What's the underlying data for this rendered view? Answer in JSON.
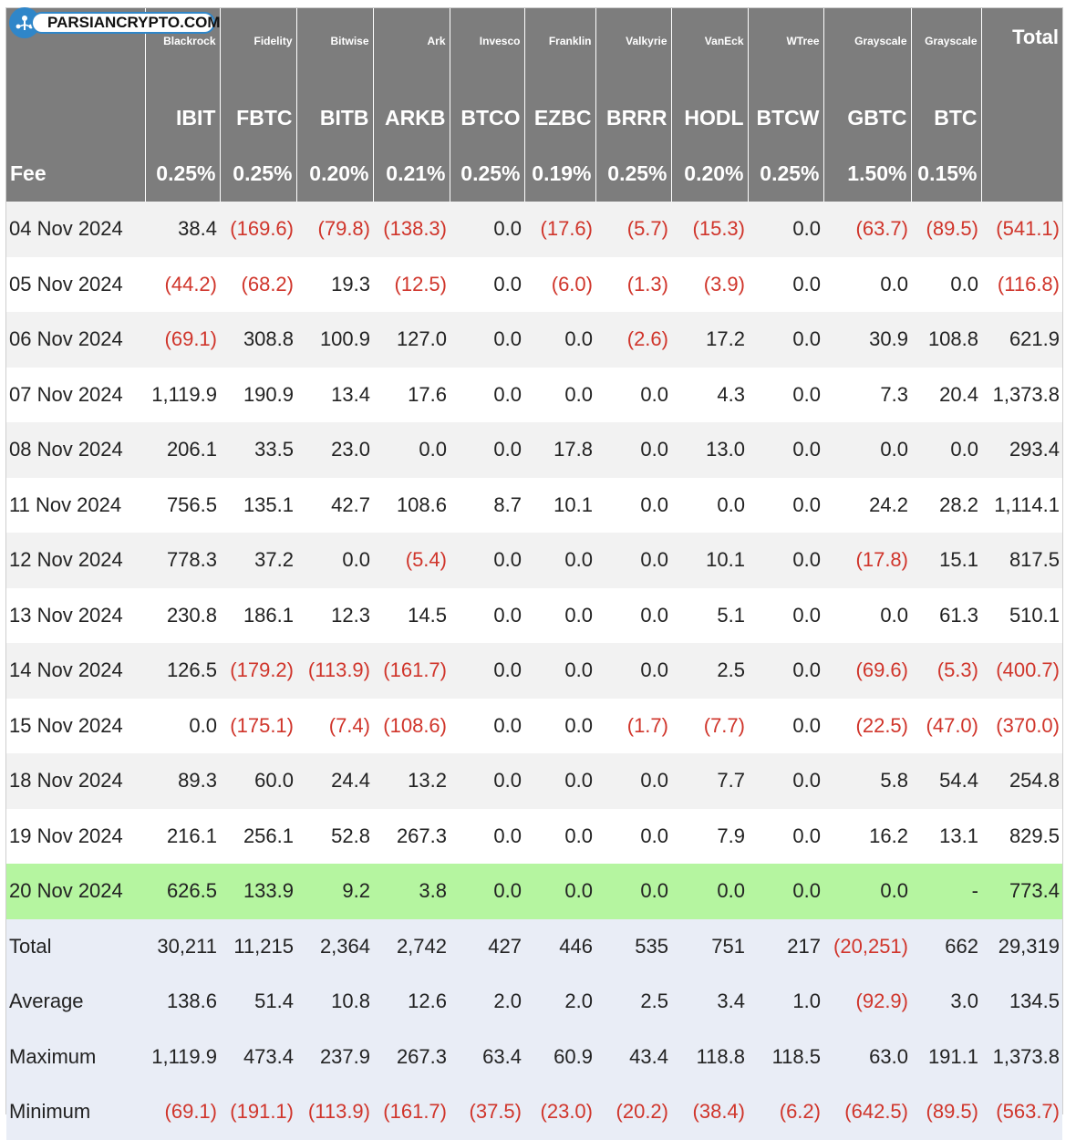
{
  "watermark": {
    "text": "PARSIANCRYPTO.COM"
  },
  "header": {
    "issuers": [
      "Blackrock",
      "Fidelity",
      "Bitwise",
      "Ark",
      "Invesco",
      "Franklin",
      "Valkyrie",
      "VanEck",
      "WTree",
      "Grayscale",
      "Grayscale"
    ],
    "total_label": "Total",
    "tickers": [
      "IBIT",
      "FBTC",
      "BITB",
      "ARKB",
      "BTCO",
      "EZBC",
      "BRRR",
      "HODL",
      "BTCW",
      "GBTC",
      "BTC"
    ],
    "fee_label": "Fee",
    "fees": [
      "0.25%",
      "0.25%",
      "0.20%",
      "0.21%",
      "0.25%",
      "0.19%",
      "0.25%",
      "0.20%",
      "0.25%",
      "1.50%",
      "0.15%"
    ]
  },
  "rows": [
    {
      "date": "04 Nov 2024",
      "values": [
        "38.4",
        "(169.6)",
        "(79.8)",
        "(138.3)",
        "0.0",
        "(17.6)",
        "(5.7)",
        "(15.3)",
        "0.0",
        "(63.7)",
        "(89.5)",
        "(541.1)"
      ]
    },
    {
      "date": "05 Nov 2024",
      "values": [
        "(44.2)",
        "(68.2)",
        "19.3",
        "(12.5)",
        "0.0",
        "(6.0)",
        "(1.3)",
        "(3.9)",
        "0.0",
        "0.0",
        "0.0",
        "(116.8)"
      ]
    },
    {
      "date": "06 Nov 2024",
      "values": [
        "(69.1)",
        "308.8",
        "100.9",
        "127.0",
        "0.0",
        "0.0",
        "(2.6)",
        "17.2",
        "0.0",
        "30.9",
        "108.8",
        "621.9"
      ]
    },
    {
      "date": "07 Nov 2024",
      "values": [
        "1,119.9",
        "190.9",
        "13.4",
        "17.6",
        "0.0",
        "0.0",
        "0.0",
        "4.3",
        "0.0",
        "7.3",
        "20.4",
        "1,373.8"
      ]
    },
    {
      "date": "08 Nov 2024",
      "values": [
        "206.1",
        "33.5",
        "23.0",
        "0.0",
        "0.0",
        "17.8",
        "0.0",
        "13.0",
        "0.0",
        "0.0",
        "0.0",
        "293.4"
      ]
    },
    {
      "date": "11 Nov 2024",
      "values": [
        "756.5",
        "135.1",
        "42.7",
        "108.6",
        "8.7",
        "10.1",
        "0.0",
        "0.0",
        "0.0",
        "24.2",
        "28.2",
        "1,114.1"
      ]
    },
    {
      "date": "12 Nov 2024",
      "values": [
        "778.3",
        "37.2",
        "0.0",
        "(5.4)",
        "0.0",
        "0.0",
        "0.0",
        "10.1",
        "0.0",
        "(17.8)",
        "15.1",
        "817.5"
      ]
    },
    {
      "date": "13 Nov 2024",
      "values": [
        "230.8",
        "186.1",
        "12.3",
        "14.5",
        "0.0",
        "0.0",
        "0.0",
        "5.1",
        "0.0",
        "0.0",
        "61.3",
        "510.1"
      ]
    },
    {
      "date": "14 Nov 2024",
      "values": [
        "126.5",
        "(179.2)",
        "(113.9)",
        "(161.7)",
        "0.0",
        "0.0",
        "0.0",
        "2.5",
        "0.0",
        "(69.6)",
        "(5.3)",
        "(400.7)"
      ]
    },
    {
      "date": "15 Nov 2024",
      "values": [
        "0.0",
        "(175.1)",
        "(7.4)",
        "(108.6)",
        "0.0",
        "0.0",
        "(1.7)",
        "(7.7)",
        "0.0",
        "(22.5)",
        "(47.0)",
        "(370.0)"
      ]
    },
    {
      "date": "18 Nov 2024",
      "values": [
        "89.3",
        "60.0",
        "24.4",
        "13.2",
        "0.0",
        "0.0",
        "0.0",
        "7.7",
        "0.0",
        "5.8",
        "54.4",
        "254.8"
      ]
    },
    {
      "date": "19 Nov 2024",
      "values": [
        "216.1",
        "256.1",
        "52.8",
        "267.3",
        "0.0",
        "0.0",
        "0.0",
        "7.9",
        "0.0",
        "16.2",
        "13.1",
        "829.5"
      ]
    },
    {
      "date": "20 Nov 2024",
      "highlight": true,
      "values": [
        "626.5",
        "133.9",
        "9.2",
        "3.8",
        "0.0",
        "0.0",
        "0.0",
        "0.0",
        "0.0",
        "0.0",
        "-",
        "773.4"
      ]
    }
  ],
  "stats": [
    {
      "label": "Total",
      "values": [
        "30,211",
        "11,215",
        "2,364",
        "2,742",
        "427",
        "446",
        "535",
        "751",
        "217",
        "(20,251)",
        "662",
        "29,319"
      ]
    },
    {
      "label": "Average",
      "values": [
        "138.6",
        "51.4",
        "10.8",
        "12.6",
        "2.0",
        "2.0",
        "2.5",
        "3.4",
        "1.0",
        "(92.9)",
        "3.0",
        "134.5"
      ]
    },
    {
      "label": "Maximum",
      "values": [
        "1,119.9",
        "473.4",
        "237.9",
        "267.3",
        "63.4",
        "60.9",
        "43.4",
        "118.8",
        "118.5",
        "63.0",
        "191.1",
        "1,373.8"
      ]
    },
    {
      "label": "Minimum",
      "values": [
        "(69.1)",
        "(191.1)",
        "(113.9)",
        "(161.7)",
        "(37.5)",
        "(23.0)",
        "(20.2)",
        "(38.4)",
        "(6.2)",
        "(642.5)",
        "(89.5)",
        "(563.7)"
      ]
    }
  ],
  "colors": {
    "header_bg": "#7d7d7d",
    "negative": "#d0352b",
    "highlight_row": "#b5f5a0",
    "stats_bg": "#e9edf6",
    "logo_blue": "#2f86c9"
  }
}
